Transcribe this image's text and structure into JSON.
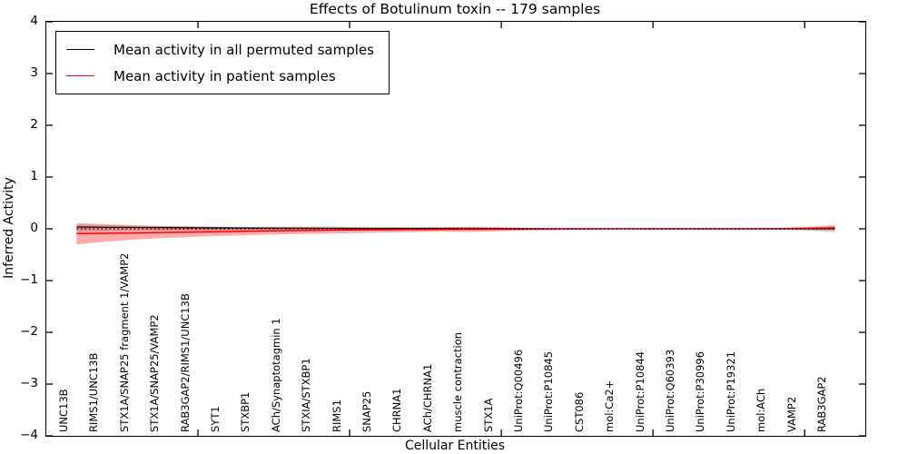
{
  "chart_data": {
    "type": "line",
    "title": "Effects of Botulinum toxin -- 179 samples",
    "xlabel": "Cellular Entities",
    "ylabel": "Inferred Activity",
    "xlim": [
      0,
      27
    ],
    "ylim": [
      -4,
      4
    ],
    "yticks": [
      4,
      3,
      2,
      1,
      0,
      -1,
      -2,
      -3,
      -4
    ],
    "ytick_labels": [
      "4",
      "3",
      "2",
      "1",
      "0",
      "−1",
      "−2",
      "−3",
      "−4"
    ],
    "x_major_ticks": [
      5,
      10,
      15,
      20,
      25
    ],
    "grid": false,
    "legend_position": "upper-left-inside",
    "axis_color": "#000000",
    "categories": [
      "UNC13B",
      "RIMS1/UNC13B",
      "STX1A/SNAP25 fragment 1/VAMP2",
      "STX1A/SNAP25/VAMP2",
      "RAB3GAP2/RIMS1/UNC13B",
      "SYT1",
      "STXBP1",
      "ACh/Synaptotagmin 1",
      "STXIA/STXBP1",
      "RIMS1",
      "SNAP25",
      "CHRNA1",
      "ACh/CHRNA1",
      "muscle contraction",
      "STX1A",
      "UniProt:Q00496",
      "UniProt:P10845",
      "CST086",
      "mol:Ca2+",
      "UniProt:P10844",
      "UniProt:Q60393",
      "UniProt:P30996",
      "UniProt:P19321",
      "mol:ACh",
      "VAMP2",
      "RAB3GAP2"
    ],
    "series": [
      {
        "name": "Mean activity in all permuted samples",
        "color": "#000000",
        "width": 1.2,
        "values": [
          0.035,
          0.03,
          0.027,
          0.023,
          0.02,
          0.017,
          0.014,
          0.012,
          0.01,
          0.008,
          0.006,
          0.005,
          0.004,
          0.003,
          0.002,
          0.002,
          0.001,
          0.001,
          0.001,
          0.0,
          0.0,
          0.0,
          0.0,
          0.0,
          0.002,
          0.004
        ]
      },
      {
        "name": "Mean activity in patient samples",
        "color": "#ff0000",
        "width": 1.5,
        "values": [
          -0.09,
          -0.085,
          -0.078,
          -0.07,
          -0.061,
          -0.052,
          -0.043,
          -0.035,
          -0.028,
          -0.022,
          -0.017,
          -0.013,
          -0.01,
          -0.008,
          -0.006,
          -0.004,
          -0.003,
          -0.002,
          -0.001,
          -0.001,
          0.0,
          0.0,
          0.001,
          0.003,
          0.008,
          0.018
        ]
      }
    ],
    "bands": [
      {
        "name": "permuted-samples-confidence-band",
        "color": "rgba(0,0,0,0.15)",
        "upper": [
          0.085,
          0.07,
          0.06,
          0.052,
          0.046,
          0.04,
          0.036,
          0.032,
          0.03,
          0.028,
          0.03,
          0.034,
          0.038,
          0.034,
          0.024,
          0.016,
          0.012,
          0.01,
          0.009,
          0.008,
          0.008,
          0.008,
          0.009,
          0.014,
          0.04,
          0.085
        ],
        "lower": [
          -0.055,
          -0.048,
          -0.042,
          -0.038,
          -0.034,
          -0.03,
          -0.027,
          -0.024,
          -0.022,
          -0.021,
          -0.023,
          -0.026,
          -0.029,
          -0.026,
          -0.018,
          -0.012,
          -0.009,
          -0.008,
          -0.007,
          -0.006,
          -0.006,
          -0.006,
          -0.007,
          -0.011,
          -0.032,
          -0.07
        ]
      },
      {
        "name": "patient-samples-confidence-band",
        "color": "rgba(255,0,0,0.33)",
        "upper": [
          0.11,
          0.088,
          0.068,
          0.052,
          0.042,
          0.036,
          0.034,
          0.038,
          0.042,
          0.038,
          0.032,
          0.028,
          0.032,
          0.042,
          0.03,
          0.016,
          0.011,
          0.008,
          0.007,
          0.006,
          0.006,
          0.006,
          0.007,
          0.011,
          0.026,
          0.05
        ],
        "lower": [
          -0.3,
          -0.245,
          -0.205,
          -0.175,
          -0.152,
          -0.133,
          -0.117,
          -0.104,
          -0.094,
          -0.085,
          -0.075,
          -0.065,
          -0.058,
          -0.062,
          -0.047,
          -0.027,
          -0.017,
          -0.012,
          -0.009,
          -0.008,
          -0.008,
          -0.008,
          -0.009,
          -0.014,
          -0.022,
          -0.032
        ]
      }
    ],
    "zero_line": {
      "style": "dotted",
      "color": "#000000",
      "width": 1.3
    }
  },
  "legend": {
    "items": [
      {
        "label": "Mean activity in all permuted samples",
        "color": "#000000"
      },
      {
        "label": "Mean activity in patient samples",
        "color": "#ff0000"
      }
    ]
  }
}
